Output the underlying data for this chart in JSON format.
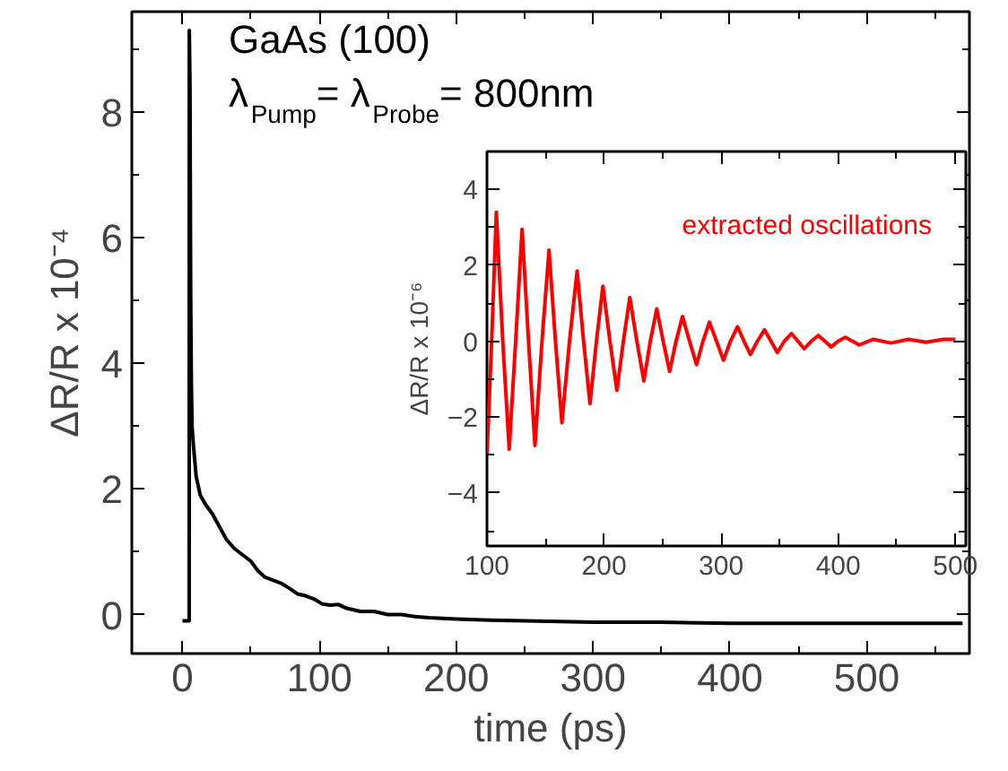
{
  "chart_data": [
    {
      "type": "line",
      "xlabel": "time (ps)",
      "ylabel": "ΔR/R x 10⁻⁴",
      "annotations": [
        "GaAs (100)",
        "λ$_{Pump}$= λ$_{Probe}$= 800nm"
      ],
      "x": [
        0,
        4.9,
        5,
        5.5,
        6,
        6.5,
        7,
        8,
        10,
        13,
        17,
        22,
        27,
        32,
        38,
        44,
        50,
        55,
        60,
        66,
        72,
        78,
        84,
        90,
        96,
        102,
        108,
        114,
        120,
        130,
        140,
        150,
        160,
        170,
        180,
        200,
        225,
        250,
        275,
        300,
        350,
        400,
        450,
        500,
        570
      ],
      "series": [
        {
          "color": "#000000",
          "values": [
            -0.1,
            -0.1,
            9.3,
            8.4,
            5.1,
            3.7,
            3.0,
            2.7,
            2.2,
            1.9,
            1.75,
            1.6,
            1.4,
            1.2,
            1.05,
            0.95,
            0.85,
            0.7,
            0.6,
            0.55,
            0.5,
            0.42,
            0.33,
            0.3,
            0.25,
            0.17,
            0.15,
            0.16,
            0.1,
            0.05,
            0.05,
            0.0,
            0.0,
            -0.03,
            -0.05,
            -0.07,
            -0.09,
            -0.1,
            -0.11,
            -0.12,
            -0.12,
            -0.14,
            -0.14,
            -0.14,
            -0.14
          ]
        }
      ],
      "xlim": [
        -37,
        575
      ],
      "ylim": [
        -0.62,
        9.6
      ],
      "xticks": [
        0,
        100,
        200,
        300,
        400,
        500
      ],
      "yticks": [
        0,
        2,
        4,
        6,
        8
      ],
      "grid": false,
      "line_style": "solid",
      "marker": "none"
    },
    {
      "type": "line",
      "ylabel": "ΔR/R x 10⁻⁶",
      "x": [
        100,
        104,
        108,
        113.5,
        119,
        124.5,
        130,
        135.5,
        141,
        147,
        153,
        158.5,
        164,
        170.5,
        177,
        182.5,
        188,
        193.5,
        199,
        205,
        211,
        216.5,
        222,
        228,
        234,
        239.5,
        245,
        250.5,
        256,
        261.5,
        267,
        273,
        279,
        284.5,
        290,
        296,
        302,
        308,
        314,
        319.5,
        325,
        331,
        337,
        342.5,
        348,
        354,
        360,
        365.5,
        371,
        377,
        383,
        388.5,
        394,
        400,
        406,
        412,
        418,
        430,
        445,
        460,
        475,
        490,
        500
      ],
      "series": [
        {
          "name": "extracted oscillations",
          "color": "#ff0000",
          "values": [
            -3.0,
            0,
            3.4,
            0,
            -2.85,
            0,
            2.95,
            0,
            -2.75,
            0,
            2.4,
            0,
            -2.15,
            0,
            1.85,
            0,
            -1.65,
            0,
            1.45,
            0,
            -1.3,
            0,
            1.15,
            0,
            -1.05,
            0,
            0.85,
            0,
            -0.8,
            0,
            0.65,
            0,
            -0.62,
            0,
            0.5,
            0,
            -0.5,
            0,
            0.38,
            0,
            -0.35,
            0,
            0.3,
            0,
            -0.3,
            0,
            0.2,
            0,
            -0.2,
            0,
            0.15,
            0,
            -0.15,
            0,
            0.1,
            0,
            -0.1,
            0.05,
            -0.05,
            0.05,
            -0.03,
            0.05,
            0.05
          ]
        }
      ],
      "xlim": [
        100,
        509
      ],
      "ylim": [
        -5.4,
        5.0
      ],
      "xticks": [
        100,
        200,
        300,
        400,
        500
      ],
      "yticks": [
        -4,
        -2,
        0,
        2,
        4
      ],
      "grid": false,
      "line_style": "solid",
      "marker": "none"
    }
  ]
}
